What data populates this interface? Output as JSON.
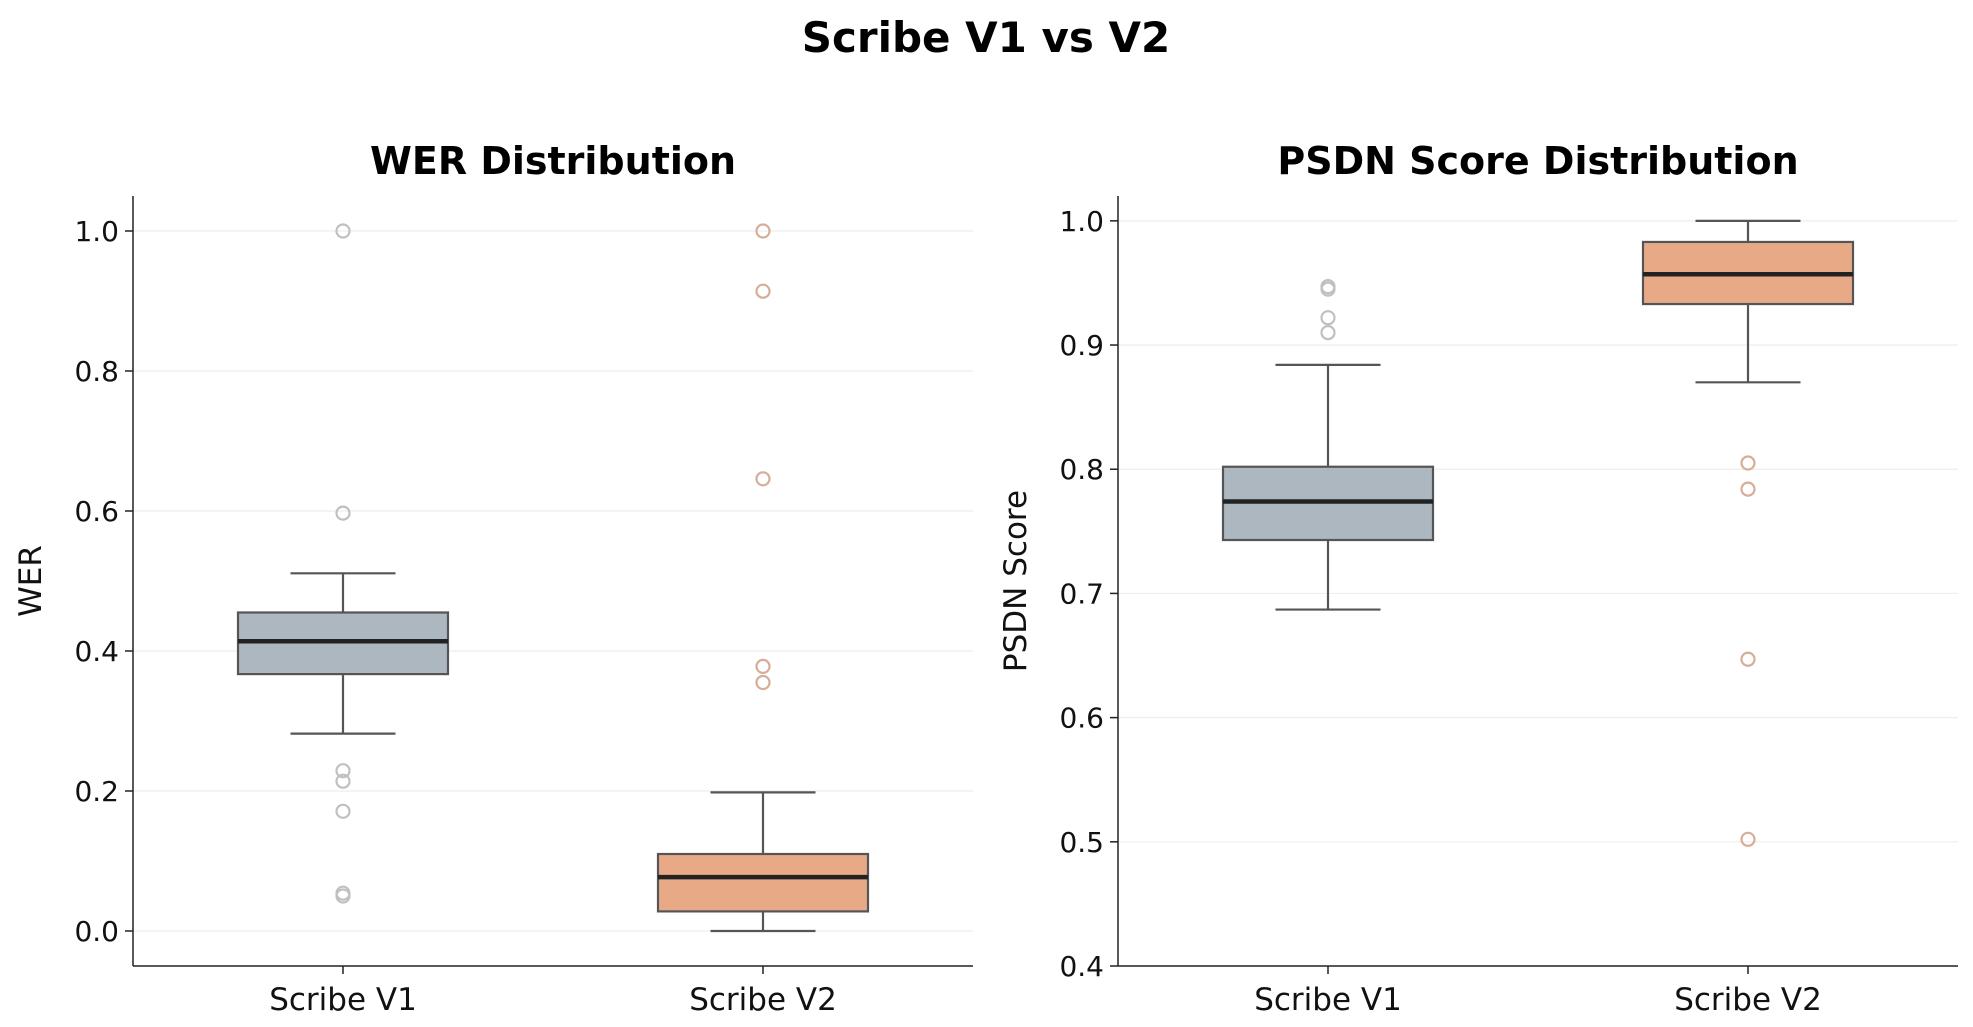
{
  "figure": {
    "title": "Scribe V1 vs V2"
  },
  "chart_data": [
    {
      "type": "box",
      "title": "WER Distribution",
      "xlabel": "",
      "ylabel": "WER",
      "ylim": [
        -0.05,
        1.05
      ],
      "yticks": [
        0.0,
        0.2,
        0.4,
        0.6,
        0.8,
        1.0
      ],
      "ytick_labels": [
        "0.0",
        "0.2",
        "0.4",
        "0.6",
        "0.8",
        "1.0"
      ],
      "grid": "y",
      "categories": [
        "Scribe V1",
        "Scribe V2"
      ],
      "boxes": [
        {
          "whisker_low": 0.282,
          "q1": 0.367,
          "median": 0.414,
          "q3": 0.455,
          "whisker_high": 0.511,
          "outliers": [
            1.0,
            0.597,
            0.229,
            0.214,
            0.171,
            0.054,
            0.05
          ],
          "color": "#adb7c0",
          "outlier_color": "#c0c0c0"
        },
        {
          "whisker_low": 0.0,
          "q1": 0.028,
          "median": 0.077,
          "q3": 0.11,
          "whisker_high": 0.198,
          "outliers": [
            1.0,
            0.914,
            0.646,
            0.378,
            0.355
          ],
          "color": "#e8aa86",
          "outlier_color": "#d6ad98"
        }
      ]
    },
    {
      "type": "box",
      "title": "PSDN Score Distribution",
      "xlabel": "",
      "ylabel": "PSDN Score",
      "ylim": [
        0.4,
        1.02
      ],
      "yticks": [
        0.4,
        0.5,
        0.6,
        0.7,
        0.8,
        0.9,
        1.0
      ],
      "ytick_labels": [
        "0.4",
        "0.5",
        "0.6",
        "0.7",
        "0.8",
        "0.9",
        "1.0"
      ],
      "grid": "y",
      "categories": [
        "Scribe V1",
        "Scribe V2"
      ],
      "boxes": [
        {
          "whisker_low": 0.687,
          "q1": 0.743,
          "median": 0.774,
          "q3": 0.802,
          "whisker_high": 0.884,
          "outliers": [
            0.947,
            0.945,
            0.922,
            0.91
          ],
          "color": "#adb7c0",
          "outlier_color": "#c0c0c0"
        },
        {
          "whisker_low": 0.87,
          "q1": 0.933,
          "median": 0.957,
          "q3": 0.983,
          "whisker_high": 1.0,
          "outliers": [
            0.805,
            0.784,
            0.647,
            0.502
          ],
          "color": "#e8aa86",
          "outlier_color": "#d6ad98"
        }
      ]
    }
  ]
}
